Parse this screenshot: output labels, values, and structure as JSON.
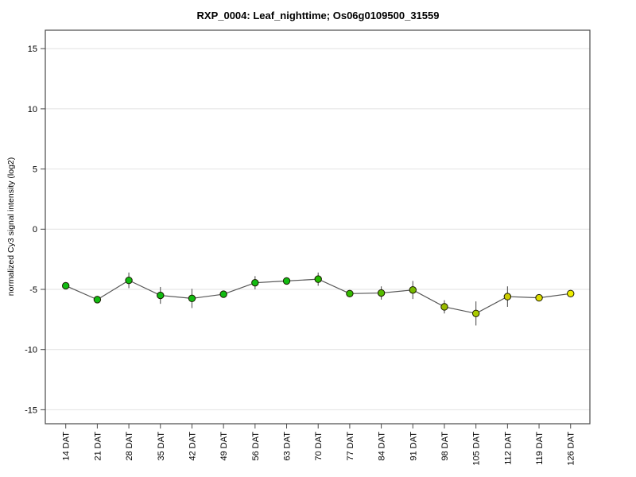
{
  "chart_data": {
    "type": "line",
    "title": "RXP_0004: Leaf_nighttime; Os06g0109500_31559",
    "xlabel": "",
    "ylabel": "normalized Cy3 signal intensity (log2)",
    "categories": [
      "14 DAT",
      "21 DAT",
      "28 DAT",
      "35 DAT",
      "42 DAT",
      "49 DAT",
      "56 DAT",
      "63 DAT",
      "70 DAT",
      "77 DAT",
      "84 DAT",
      "91 DAT",
      "98 DAT",
      "105 DAT",
      "112 DAT",
      "119 DAT",
      "126 DAT"
    ],
    "series": [
      {
        "name": "normalized Cy3 signal intensity (log2)",
        "values": [
          -4.7,
          -5.85,
          -4.25,
          -5.5,
          -5.75,
          -5.4,
          -4.45,
          -4.3,
          -4.15,
          -5.35,
          -5.3,
          -5.05,
          -6.45,
          -7.0,
          -5.6,
          -5.7,
          -5.35
        ],
        "errors": [
          0.15,
          0.2,
          0.65,
          0.7,
          0.8,
          0.25,
          0.55,
          0.15,
          0.55,
          0.25,
          0.55,
          0.75,
          0.55,
          1.0,
          0.85,
          0.2,
          0.15
        ]
      }
    ],
    "point_colors": [
      "#11bb11",
      "#11bb11",
      "#11bb11",
      "#11bb11",
      "#11bb11",
      "#11bb11",
      "#11bb11",
      "#11bb11",
      "#22bb00",
      "#33bb00",
      "#55bb00",
      "#77bb00",
      "#99bb00",
      "#aacc00",
      "#cccc00",
      "#dddd00",
      "#eeee00"
    ],
    "yticks": [
      15,
      10,
      5,
      0,
      -5,
      -10,
      -15
    ],
    "ylim": [
      -16.6,
      16.6
    ],
    "grid": "horizontal",
    "legend_position": "none",
    "colors": {
      "line": "#555555",
      "error_bar": "#555555",
      "marker_stroke": "#1a1a00",
      "grid": "#e2e2e2",
      "frame": "#4a4a4a",
      "background": "#ffffff"
    }
  }
}
